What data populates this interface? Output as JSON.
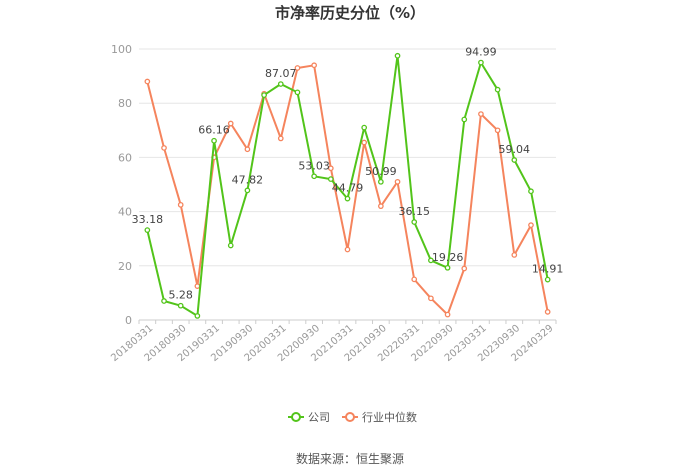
{
  "chart_data": {
    "type": "line",
    "title": "市净率历史分位（%）",
    "source": "数据来源：恒生聚源",
    "ylim": [
      0,
      100
    ],
    "yticks": [
      0,
      20,
      40,
      60,
      80,
      100
    ],
    "grid": true,
    "legend_position": "bottom-center",
    "x": [
      "20180331",
      "20180630",
      "20180930",
      "20181231",
      "20190331",
      "20190630",
      "20190930",
      "20191231",
      "20200331",
      "20200630",
      "20200930",
      "20201231",
      "20210331",
      "20210630",
      "20210930",
      "20211231",
      "20220331",
      "20220630",
      "20220930",
      "20221231",
      "20230331",
      "20230630",
      "20230930",
      "20231231",
      "20240329"
    ],
    "x_tick_labels": [
      "20180331",
      "20180930",
      "20190331",
      "20190930",
      "20200331",
      "20200930",
      "20210331",
      "20210930",
      "20220331",
      "20220930",
      "20230331",
      "20230930",
      "20240329"
    ],
    "series": [
      {
        "name": "公司",
        "color": "#52c41a",
        "values": [
          33.18,
          7,
          5.28,
          1.5,
          66.16,
          27.5,
          47.82,
          83,
          87.07,
          84,
          53.03,
          52,
          44.79,
          71,
          50.99,
          97.5,
          36.15,
          22,
          19.26,
          74,
          94.99,
          85,
          59.04,
          47.5,
          14.91
        ],
        "labels": {
          "0": "33.18",
          "2": "5.28",
          "4": "66.16",
          "6": "47.82",
          "8": "87.07",
          "10": "53.03",
          "12": "44.79",
          "14": "50.99",
          "16": "36.15",
          "18": "19.26",
          "20": "94.99",
          "22": "59.04",
          "24": "14.91"
        }
      },
      {
        "name": "行业中位数",
        "color": "#f5845d",
        "values": [
          88,
          63.5,
          42.5,
          12.5,
          60,
          72.5,
          63,
          83.5,
          67,
          93,
          94,
          56,
          26,
          65.5,
          42,
          51,
          15,
          8,
          2,
          19,
          76,
          70,
          24,
          35,
          3
        ]
      }
    ]
  }
}
